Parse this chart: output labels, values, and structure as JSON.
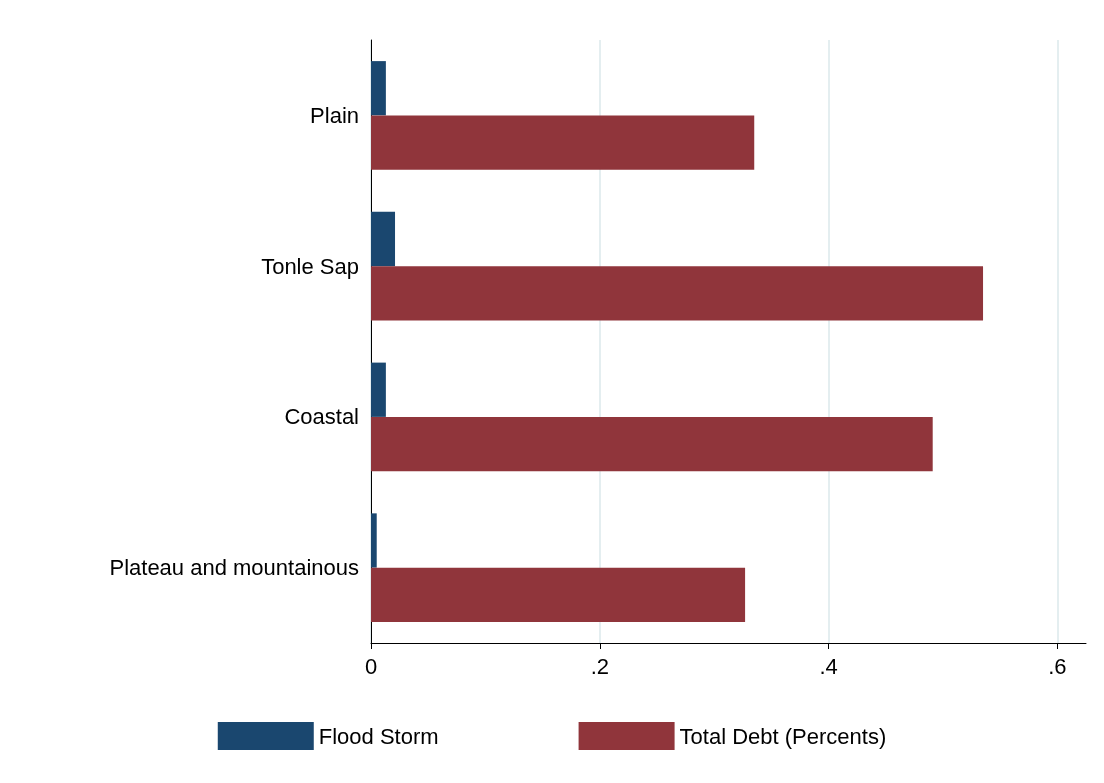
{
  "chart_data": {
    "type": "bar",
    "orientation": "horizontal",
    "categories": [
      "Plain",
      "Tonle Sap",
      "Coastal",
      "Plateau and mountainous"
    ],
    "series": [
      {
        "name": "Flood Storm",
        "color": "#1a476f",
        "values": [
          0.013,
          0.021,
          0.013,
          0.005
        ]
      },
      {
        "name": "Total Debt (Percents)",
        "color": "#90353b",
        "values": [
          0.335,
          0.535,
          0.491,
          0.327
        ]
      }
    ],
    "xlim": [
      0,
      0.625
    ],
    "xticks": [
      {
        "value": 0,
        "label": "0"
      },
      {
        "value": 0.2,
        "label": ".2"
      },
      {
        "value": 0.4,
        "label": ".4"
      },
      {
        "value": 0.6,
        "label": ".6"
      }
    ],
    "grid": "x",
    "legend": "bottom"
  }
}
